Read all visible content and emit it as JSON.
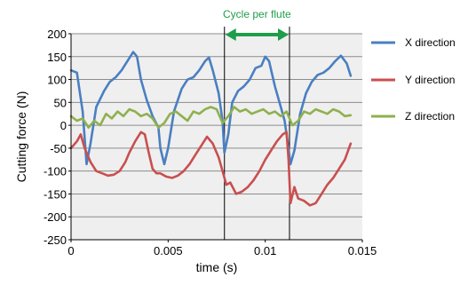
{
  "chart_data": {
    "type": "line",
    "xlabel": "time (s)",
    "ylabel": "Cutting force (N)",
    "xlim": [
      0,
      0.015
    ],
    "ylim": [
      -250,
      200
    ],
    "xticks": [
      0,
      0.005,
      0.01,
      0.015
    ],
    "xtick_labels": [
      "0",
      "0.005",
      "0.01",
      "0.015"
    ],
    "yticks": [
      -250,
      -200,
      -150,
      -100,
      -50,
      0,
      50,
      100,
      150,
      200
    ],
    "grid": true,
    "legend_position": "right",
    "annotation": {
      "text": "Cycle per flute",
      "x_start": 0.0079,
      "x_end": 0.01125,
      "color": "#1e9e4a"
    },
    "series": [
      {
        "name": "X direction",
        "color": "#4a7fc1",
        "x": [
          0,
          0.0003,
          0.0006,
          0.0008,
          0.001,
          0.0013,
          0.0017,
          0.002,
          0.0023,
          0.0026,
          0.0029,
          0.0032,
          0.0034,
          0.0036,
          0.0039,
          0.0042,
          0.0045,
          0.0046,
          0.0048,
          0.005,
          0.0053,
          0.0057,
          0.006,
          0.0063,
          0.0066,
          0.0069,
          0.0071,
          0.0073,
          0.0076,
          0.0078,
          0.0079,
          0.0081,
          0.0083,
          0.0086,
          0.0089,
          0.0092,
          0.0095,
          0.0098,
          0.01,
          0.0102,
          0.0105,
          0.0108,
          0.011,
          0.0112,
          0.0113,
          0.0115,
          0.0118,
          0.0121,
          0.0124,
          0.0127,
          0.013,
          0.0133,
          0.0136,
          0.0139,
          0.0142,
          0.0144
        ],
        "y": [
          120,
          115,
          30,
          -85,
          -40,
          40,
          75,
          95,
          105,
          120,
          140,
          160,
          150,
          100,
          55,
          20,
          -5,
          -50,
          -85,
          -50,
          30,
          80,
          100,
          105,
          120,
          140,
          148,
          120,
          70,
          10,
          -60,
          -20,
          50,
          75,
          85,
          100,
          125,
          130,
          150,
          140,
          85,
          40,
          10,
          -50,
          -85,
          -55,
          25,
          70,
          95,
          110,
          115,
          125,
          140,
          152,
          135,
          108
        ]
      },
      {
        "name": "Y direction",
        "color": "#c94f4f",
        "x": [
          0,
          0.0003,
          0.0005,
          0.0007,
          0.001,
          0.0013,
          0.0016,
          0.0019,
          0.0022,
          0.0025,
          0.0028,
          0.003,
          0.0033,
          0.0036,
          0.0038,
          0.004,
          0.0042,
          0.0044,
          0.0046,
          0.0049,
          0.0052,
          0.0055,
          0.0058,
          0.0061,
          0.0064,
          0.0067,
          0.007,
          0.0073,
          0.0076,
          0.0078,
          0.008,
          0.0082,
          0.0085,
          0.0088,
          0.0091,
          0.0094,
          0.0097,
          0.01,
          0.0103,
          0.0106,
          0.0109,
          0.0111,
          0.0112,
          0.0113,
          0.0115,
          0.0117,
          0.012,
          0.0123,
          0.0126,
          0.0129,
          0.0132,
          0.0135,
          0.0138,
          0.0141,
          0.0144
        ],
        "y": [
          -50,
          -35,
          -20,
          -50,
          -80,
          -100,
          -105,
          -110,
          -108,
          -100,
          -80,
          -60,
          -35,
          -15,
          -20,
          -60,
          -95,
          -105,
          -105,
          -112,
          -115,
          -110,
          -100,
          -85,
          -65,
          -45,
          -25,
          -40,
          -70,
          -100,
          -130,
          -125,
          -150,
          -145,
          -135,
          -120,
          -100,
          -75,
          -55,
          -35,
          -20,
          -15,
          -75,
          -170,
          -135,
          -160,
          -165,
          -175,
          -170,
          -150,
          -130,
          -115,
          -95,
          -75,
          -40
        ]
      },
      {
        "name": "Z direction",
        "color": "#8fb04f",
        "x": [
          0,
          0.0003,
          0.0006,
          0.0009,
          0.0012,
          0.0015,
          0.0018,
          0.0021,
          0.0024,
          0.0027,
          0.003,
          0.0033,
          0.0036,
          0.0039,
          0.0042,
          0.0045,
          0.0048,
          0.0051,
          0.0054,
          0.0057,
          0.006,
          0.0063,
          0.0066,
          0.0069,
          0.0072,
          0.0075,
          0.0078,
          0.0081,
          0.0084,
          0.0087,
          0.009,
          0.0093,
          0.0096,
          0.0099,
          0.0102,
          0.0105,
          0.0108,
          0.0111,
          0.0114,
          0.0117,
          0.012,
          0.0123,
          0.0126,
          0.0129,
          0.0132,
          0.0135,
          0.0138,
          0.0141,
          0.0144
        ],
        "y": [
          20,
          10,
          15,
          -5,
          10,
          0,
          25,
          15,
          30,
          20,
          35,
          30,
          20,
          25,
          15,
          -5,
          5,
          25,
          30,
          20,
          10,
          30,
          25,
          35,
          40,
          35,
          5,
          20,
          40,
          30,
          35,
          25,
          30,
          35,
          25,
          30,
          20,
          30,
          0,
          10,
          30,
          25,
          35,
          30,
          25,
          35,
          30,
          20,
          22
        ]
      }
    ]
  }
}
